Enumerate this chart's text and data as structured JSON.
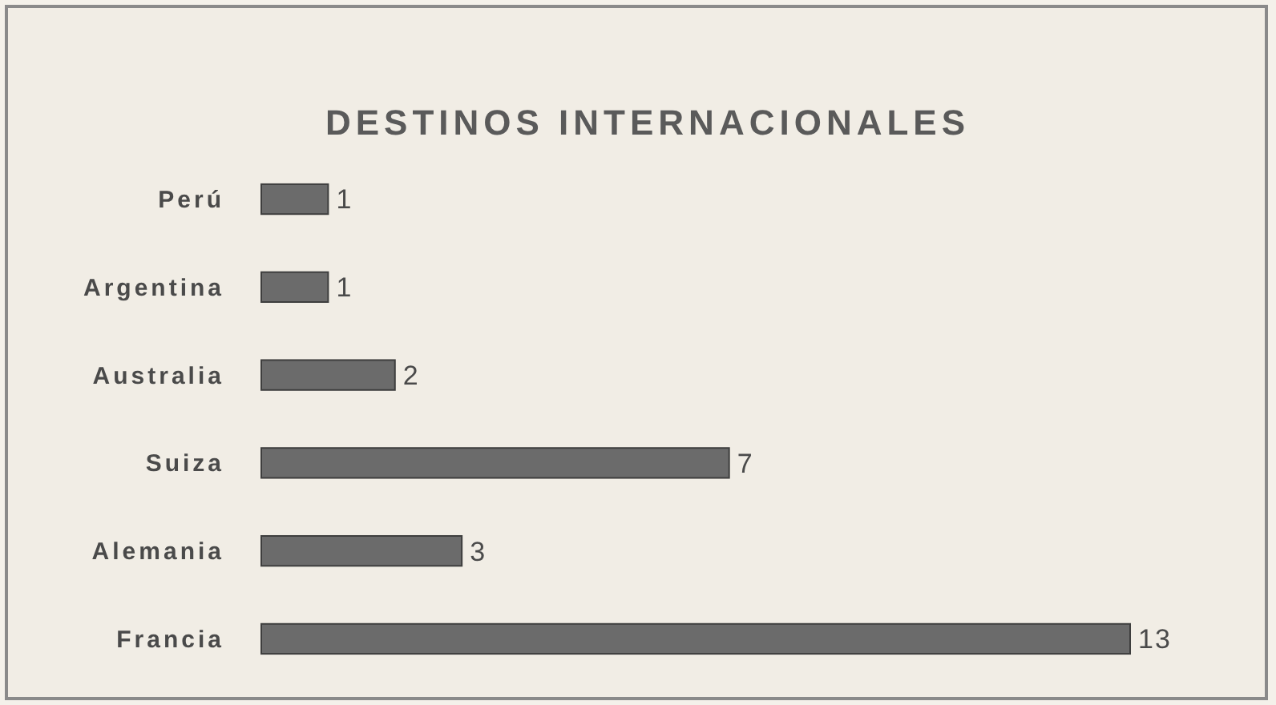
{
  "chart_data": {
    "type": "bar",
    "orientation": "horizontal",
    "title": "DESTINOS INTERNACIONALES",
    "categories": [
      "Perú",
      "Argentina",
      "Australia",
      "Suiza",
      "Alemania",
      "Francia"
    ],
    "values": [
      1,
      1,
      2,
      7,
      3,
      13
    ],
    "color": "#6b6b6b",
    "data_labels": true
  }
}
